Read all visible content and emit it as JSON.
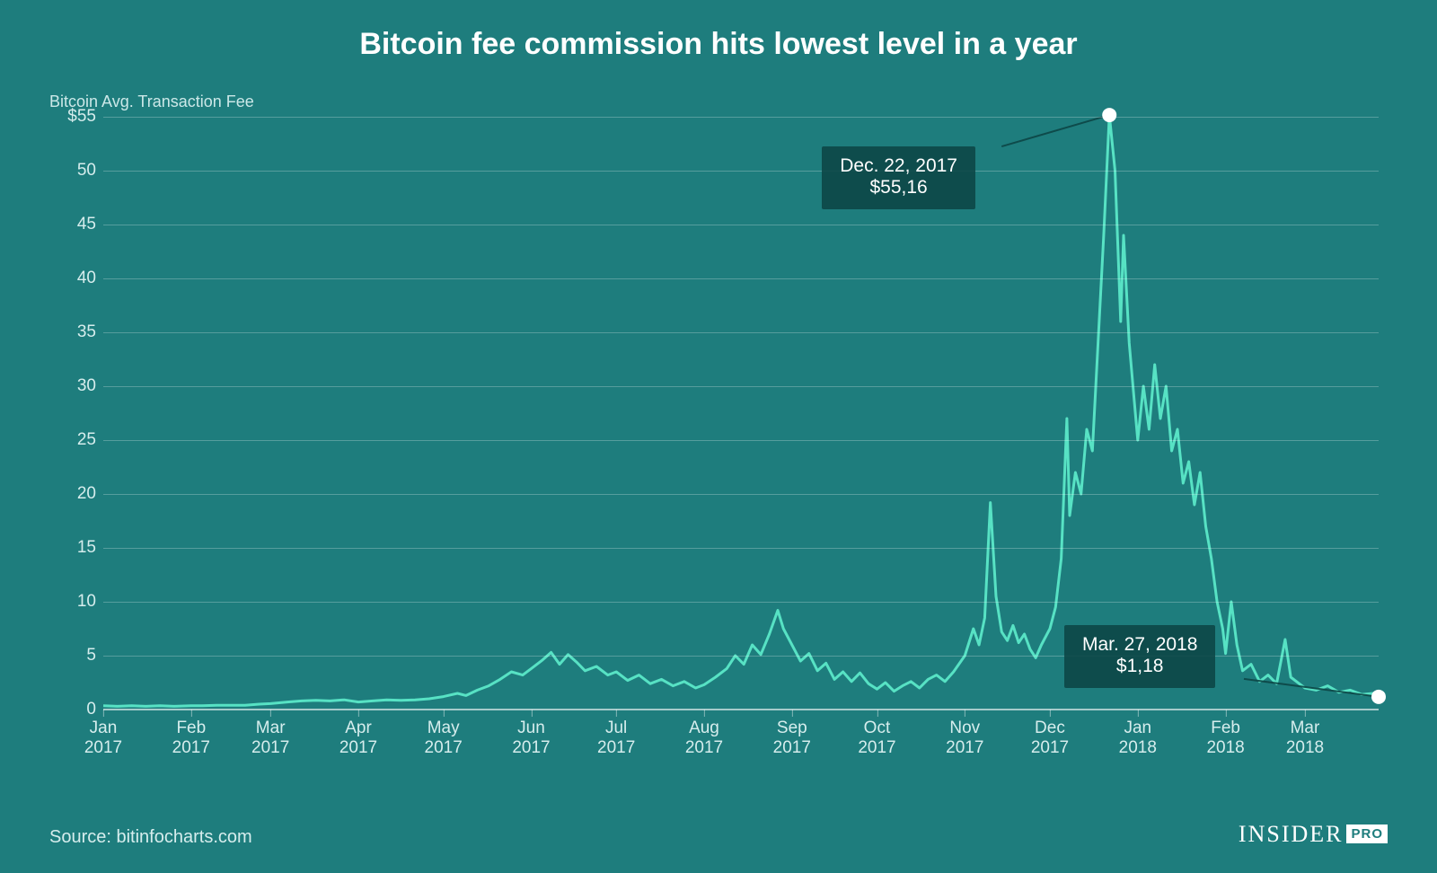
{
  "chart": {
    "type": "line",
    "title": "Bitcoin fee commission hits lowest level in a year",
    "y_axis_label": "Bitcoin Avg. Transaction Fee",
    "background_color": "#1e7d7d",
    "line_color": "#57e2c4",
    "line_width": 3,
    "grid_color": "rgba(255,255,255,0.25)",
    "text_color": "#ffffff",
    "tick_color": "#d6eded",
    "title_fontsize": 34,
    "tick_fontsize": 19,
    "label_fontsize": 18,
    "callout_bg": "rgba(12,70,70,0.88)",
    "point_color": "#ffffff",
    "point_radius": 8,
    "ylim": [
      0,
      55
    ],
    "ytick_step": 5,
    "y_ticks": [
      {
        "v": 55,
        "label": "$55"
      },
      {
        "v": 50,
        "label": "50"
      },
      {
        "v": 45,
        "label": "45"
      },
      {
        "v": 40,
        "label": "40"
      },
      {
        "v": 35,
        "label": "35"
      },
      {
        "v": 30,
        "label": "30"
      },
      {
        "v": 25,
        "label": "25"
      },
      {
        "v": 20,
        "label": "20"
      },
      {
        "v": 15,
        "label": "15"
      },
      {
        "v": 10,
        "label": "10"
      },
      {
        "v": 5,
        "label": "5"
      },
      {
        "v": 0,
        "label": "0"
      }
    ],
    "x_domain": [
      0,
      450
    ],
    "x_ticks": [
      {
        "d": 0,
        "month": "Jan",
        "year": "2017"
      },
      {
        "d": 31,
        "month": "Feb",
        "year": "2017"
      },
      {
        "d": 59,
        "month": "Mar",
        "year": "2017"
      },
      {
        "d": 90,
        "month": "Apr",
        "year": "2017"
      },
      {
        "d": 120,
        "month": "May",
        "year": "2017"
      },
      {
        "d": 151,
        "month": "Jun",
        "year": "2017"
      },
      {
        "d": 181,
        "month": "Jul",
        "year": "2017"
      },
      {
        "d": 212,
        "month": "Aug",
        "year": "2017"
      },
      {
        "d": 243,
        "month": "Sep",
        "year": "2017"
      },
      {
        "d": 273,
        "month": "Oct",
        "year": "2017"
      },
      {
        "d": 304,
        "month": "Nov",
        "year": "2017"
      },
      {
        "d": 334,
        "month": "Dec",
        "year": "2017"
      },
      {
        "d": 365,
        "month": "Jan",
        "year": "2018"
      },
      {
        "d": 396,
        "month": "Feb",
        "year": "2018"
      },
      {
        "d": 424,
        "month": "Mar",
        "year": "2018"
      }
    ],
    "series": [
      {
        "d": 0,
        "v": 0.35
      },
      {
        "d": 5,
        "v": 0.3
      },
      {
        "d": 10,
        "v": 0.35
      },
      {
        "d": 15,
        "v": 0.3
      },
      {
        "d": 20,
        "v": 0.35
      },
      {
        "d": 25,
        "v": 0.3
      },
      {
        "d": 31,
        "v": 0.35
      },
      {
        "d": 35,
        "v": 0.35
      },
      {
        "d": 40,
        "v": 0.4
      },
      {
        "d": 45,
        "v": 0.4
      },
      {
        "d": 50,
        "v": 0.4
      },
      {
        "d": 55,
        "v": 0.5
      },
      {
        "d": 59,
        "v": 0.55
      },
      {
        "d": 65,
        "v": 0.7
      },
      {
        "d": 70,
        "v": 0.8
      },
      {
        "d": 75,
        "v": 0.85
      },
      {
        "d": 80,
        "v": 0.8
      },
      {
        "d": 85,
        "v": 0.9
      },
      {
        "d": 90,
        "v": 0.7
      },
      {
        "d": 95,
        "v": 0.8
      },
      {
        "d": 100,
        "v": 0.9
      },
      {
        "d": 105,
        "v": 0.85
      },
      {
        "d": 110,
        "v": 0.9
      },
      {
        "d": 115,
        "v": 1.0
      },
      {
        "d": 120,
        "v": 1.2
      },
      {
        "d": 125,
        "v": 1.5
      },
      {
        "d": 128,
        "v": 1.3
      },
      {
        "d": 132,
        "v": 1.8
      },
      {
        "d": 136,
        "v": 2.2
      },
      {
        "d": 140,
        "v": 2.8
      },
      {
        "d": 144,
        "v": 3.5
      },
      {
        "d": 148,
        "v": 3.2
      },
      {
        "d": 151,
        "v": 3.8
      },
      {
        "d": 155,
        "v": 4.6
      },
      {
        "d": 158,
        "v": 5.3
      },
      {
        "d": 161,
        "v": 4.2
      },
      {
        "d": 164,
        "v": 5.1
      },
      {
        "d": 167,
        "v": 4.4
      },
      {
        "d": 170,
        "v": 3.6
      },
      {
        "d": 174,
        "v": 4.0
      },
      {
        "d": 178,
        "v": 3.2
      },
      {
        "d": 181,
        "v": 3.5
      },
      {
        "d": 185,
        "v": 2.7
      },
      {
        "d": 189,
        "v": 3.2
      },
      {
        "d": 193,
        "v": 2.4
      },
      {
        "d": 197,
        "v": 2.8
      },
      {
        "d": 201,
        "v": 2.2
      },
      {
        "d": 205,
        "v": 2.6
      },
      {
        "d": 209,
        "v": 2.0
      },
      {
        "d": 212,
        "v": 2.3
      },
      {
        "d": 216,
        "v": 3.0
      },
      {
        "d": 220,
        "v": 3.8
      },
      {
        "d": 223,
        "v": 5.0
      },
      {
        "d": 226,
        "v": 4.2
      },
      {
        "d": 229,
        "v": 6.0
      },
      {
        "d": 232,
        "v": 5.1
      },
      {
        "d": 235,
        "v": 7.0
      },
      {
        "d": 238,
        "v": 9.2
      },
      {
        "d": 240,
        "v": 7.5
      },
      {
        "d": 243,
        "v": 6.0
      },
      {
        "d": 246,
        "v": 4.5
      },
      {
        "d": 249,
        "v": 5.2
      },
      {
        "d": 252,
        "v": 3.6
      },
      {
        "d": 255,
        "v": 4.3
      },
      {
        "d": 258,
        "v": 2.8
      },
      {
        "d": 261,
        "v": 3.5
      },
      {
        "d": 264,
        "v": 2.6
      },
      {
        "d": 267,
        "v": 3.4
      },
      {
        "d": 270,
        "v": 2.4
      },
      {
        "d": 273,
        "v": 1.9
      },
      {
        "d": 276,
        "v": 2.5
      },
      {
        "d": 279,
        "v": 1.7
      },
      {
        "d": 282,
        "v": 2.2
      },
      {
        "d": 285,
        "v": 2.6
      },
      {
        "d": 288,
        "v": 2.0
      },
      {
        "d": 291,
        "v": 2.8
      },
      {
        "d": 294,
        "v": 3.2
      },
      {
        "d": 297,
        "v": 2.6
      },
      {
        "d": 300,
        "v": 3.5
      },
      {
        "d": 304,
        "v": 5.0
      },
      {
        "d": 307,
        "v": 7.5
      },
      {
        "d": 309,
        "v": 6.0
      },
      {
        "d": 311,
        "v": 8.5
      },
      {
        "d": 313,
        "v": 19.2
      },
      {
        "d": 315,
        "v": 10.5
      },
      {
        "d": 317,
        "v": 7.2
      },
      {
        "d": 319,
        "v": 6.4
      },
      {
        "d": 321,
        "v": 7.8
      },
      {
        "d": 323,
        "v": 6.2
      },
      {
        "d": 325,
        "v": 7.0
      },
      {
        "d": 327,
        "v": 5.6
      },
      {
        "d": 329,
        "v": 4.8
      },
      {
        "d": 331,
        "v": 6.0
      },
      {
        "d": 334,
        "v": 7.5
      },
      {
        "d": 336,
        "v": 9.5
      },
      {
        "d": 338,
        "v": 14.0
      },
      {
        "d": 340,
        "v": 27.0
      },
      {
        "d": 341,
        "v": 18.0
      },
      {
        "d": 343,
        "v": 22.0
      },
      {
        "d": 345,
        "v": 20.0
      },
      {
        "d": 347,
        "v": 26.0
      },
      {
        "d": 349,
        "v": 24.0
      },
      {
        "d": 351,
        "v": 34.0
      },
      {
        "d": 353,
        "v": 44.0
      },
      {
        "d": 355,
        "v": 55.16
      },
      {
        "d": 357,
        "v": 50.0
      },
      {
        "d": 359,
        "v": 36.0
      },
      {
        "d": 360,
        "v": 44.0
      },
      {
        "d": 362,
        "v": 34.0
      },
      {
        "d": 364,
        "v": 28.0
      },
      {
        "d": 365,
        "v": 25.0
      },
      {
        "d": 367,
        "v": 30.0
      },
      {
        "d": 369,
        "v": 26.0
      },
      {
        "d": 371,
        "v": 32.0
      },
      {
        "d": 373,
        "v": 27.0
      },
      {
        "d": 375,
        "v": 30.0
      },
      {
        "d": 377,
        "v": 24.0
      },
      {
        "d": 379,
        "v": 26.0
      },
      {
        "d": 381,
        "v": 21.0
      },
      {
        "d": 383,
        "v": 23.0
      },
      {
        "d": 385,
        "v": 19.0
      },
      {
        "d": 387,
        "v": 22.0
      },
      {
        "d": 389,
        "v": 17.0
      },
      {
        "d": 391,
        "v": 14.0
      },
      {
        "d": 393,
        "v": 10.0
      },
      {
        "d": 395,
        "v": 7.5
      },
      {
        "d": 396,
        "v": 5.2
      },
      {
        "d": 398,
        "v": 10.0
      },
      {
        "d": 400,
        "v": 6.0
      },
      {
        "d": 402,
        "v": 3.6
      },
      {
        "d": 405,
        "v": 4.2
      },
      {
        "d": 408,
        "v": 2.6
      },
      {
        "d": 411,
        "v": 3.2
      },
      {
        "d": 414,
        "v": 2.4
      },
      {
        "d": 417,
        "v": 6.5
      },
      {
        "d": 419,
        "v": 3.0
      },
      {
        "d": 422,
        "v": 2.4
      },
      {
        "d": 424,
        "v": 2.0
      },
      {
        "d": 428,
        "v": 1.8
      },
      {
        "d": 432,
        "v": 2.2
      },
      {
        "d": 436,
        "v": 1.6
      },
      {
        "d": 440,
        "v": 1.8
      },
      {
        "d": 444,
        "v": 1.4
      },
      {
        "d": 448,
        "v": 1.5
      },
      {
        "d": 450,
        "v": 1.18
      }
    ],
    "callouts": [
      {
        "id": "peak",
        "d": 355,
        "v": 55.16,
        "date_label": "Dec. 22, 2017",
        "value_label": "$55,16",
        "box_offset_x": -320,
        "box_offset_y": 35
      },
      {
        "id": "end",
        "d": 450,
        "v": 1.18,
        "date_label": "Mar. 27, 2018",
        "value_label": "$1,18",
        "box_offset_x": -350,
        "box_offset_y": -80
      }
    ]
  },
  "footer": {
    "source": "Source: bitinfocharts.com",
    "brand": "INSIDER",
    "brand_suffix": "PRO"
  }
}
